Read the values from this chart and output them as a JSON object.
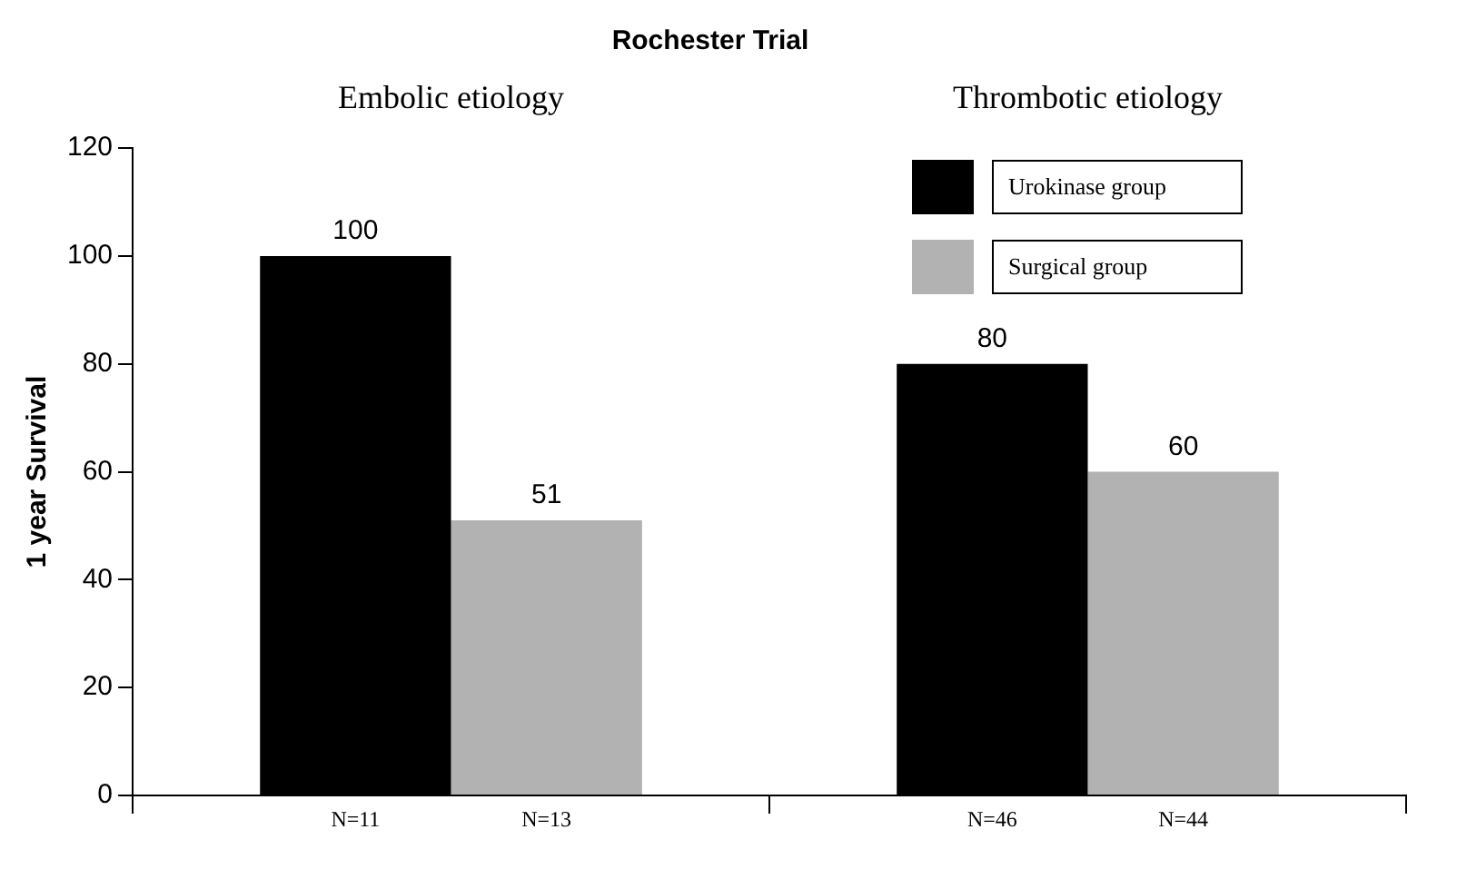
{
  "chart_data": {
    "type": "bar",
    "title": "Rochester Trial",
    "ylabel": "1 year Survival",
    "categories": [
      "Embolic etiology",
      "Thrombotic etiology"
    ],
    "series": [
      {
        "name": "Urokinase group",
        "color": "#000000",
        "values": [
          100,
          80
        ]
      },
      {
        "name": "Surgical group",
        "color": "#b2b2b2",
        "values": [
          51,
          60
        ]
      }
    ],
    "ylim": [
      0,
      120
    ],
    "yticks": [
      0,
      20,
      40,
      60,
      80,
      100,
      120
    ],
    "grid": false,
    "legend": "top right",
    "data_labels": true,
    "annotations": [
      "N=11",
      "N=13",
      "N=46",
      "N=44"
    ]
  }
}
